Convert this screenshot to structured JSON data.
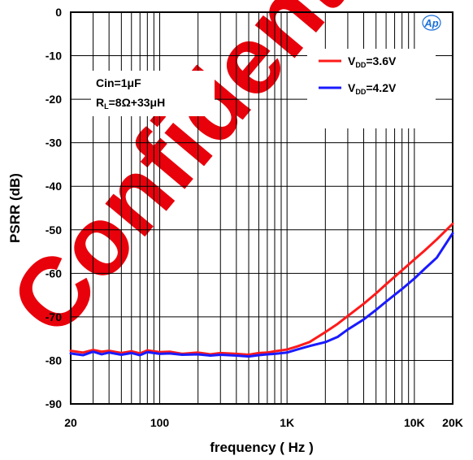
{
  "brand": {
    "logo_text": "Ap",
    "logo_color": "#1a6fd8"
  },
  "watermark": {
    "text": "Confidential",
    "color": "#e8000b"
  },
  "colors": {
    "series_1": "#ff1a1a",
    "series_2": "#1a1aff",
    "grid": "#000000"
  },
  "chart_data": {
    "type": "line",
    "x_scale": "log",
    "xlim": [
      20,
      20000
    ],
    "ylim": [
      -90,
      0
    ],
    "xlabel": "frequency ( Hz )",
    "ylabel": "PSRR (dB)",
    "x_tick_labels": [
      {
        "value": 20,
        "label": "20"
      },
      {
        "value": 100,
        "label": "100"
      },
      {
        "value": 1000,
        "label": "1K"
      },
      {
        "value": 10000,
        "label": "10K"
      },
      {
        "value": 20000,
        "label": "20K"
      }
    ],
    "y_ticks": [
      0,
      -10,
      -20,
      -30,
      -40,
      -50,
      -60,
      -70,
      -80,
      -90
    ],
    "grid": true,
    "legend_position": "top-right",
    "annotation": {
      "line1": "Cin=1μF",
      "line2_main": "R",
      "line2_sub": "L",
      "line2_rest": "=8Ω+33μH"
    },
    "series": [
      {
        "name_main": "V",
        "name_sub": "DD",
        "name_rest": "=3.6V",
        "color": "#ff1a1a",
        "x": [
          20,
          25,
          30,
          35,
          40,
          50,
          60,
          70,
          80,
          100,
          120,
          150,
          200,
          250,
          300,
          400,
          500,
          600,
          700,
          800,
          1000,
          1200,
          1500,
          2000,
          2500,
          3000,
          4000,
          5000,
          6000,
          8000,
          10000,
          12000,
          15000,
          20000
        ],
        "y": [
          -77.8,
          -78.2,
          -77.6,
          -78.0,
          -77.8,
          -78.3,
          -77.9,
          -78.4,
          -77.7,
          -78.1,
          -78.0,
          -78.5,
          -78.2,
          -78.6,
          -78.3,
          -78.5,
          -78.7,
          -78.3,
          -78.2,
          -77.9,
          -77.5,
          -76.8,
          -75.8,
          -73.5,
          -71.6,
          -69.8,
          -67.0,
          -64.6,
          -62.5,
          -59.3,
          -56.8,
          -54.8,
          -52.2,
          -48.6
        ]
      },
      {
        "name_main": "V",
        "name_sub": "DD",
        "name_rest": "=4.2V",
        "color": "#1a1aff",
        "x": [
          20,
          25,
          30,
          35,
          40,
          50,
          60,
          70,
          80,
          100,
          120,
          150,
          200,
          250,
          300,
          400,
          500,
          600,
          700,
          800,
          1000,
          1200,
          1500,
          2000,
          2500,
          3000,
          4000,
          5000,
          6000,
          8000,
          10000,
          12000,
          15000,
          20000
        ],
        "y": [
          -78.4,
          -78.8,
          -78.0,
          -78.6,
          -78.2,
          -78.7,
          -78.3,
          -78.8,
          -78.1,
          -78.5,
          -78.4,
          -78.7,
          -78.6,
          -78.9,
          -78.7,
          -78.9,
          -79.1,
          -78.8,
          -78.6,
          -78.5,
          -78.2,
          -77.5,
          -76.7,
          -75.8,
          -74.6,
          -72.9,
          -70.6,
          -68.4,
          -66.5,
          -63.6,
          -61.2,
          -59.0,
          -56.4,
          -50.8
        ]
      }
    ]
  }
}
